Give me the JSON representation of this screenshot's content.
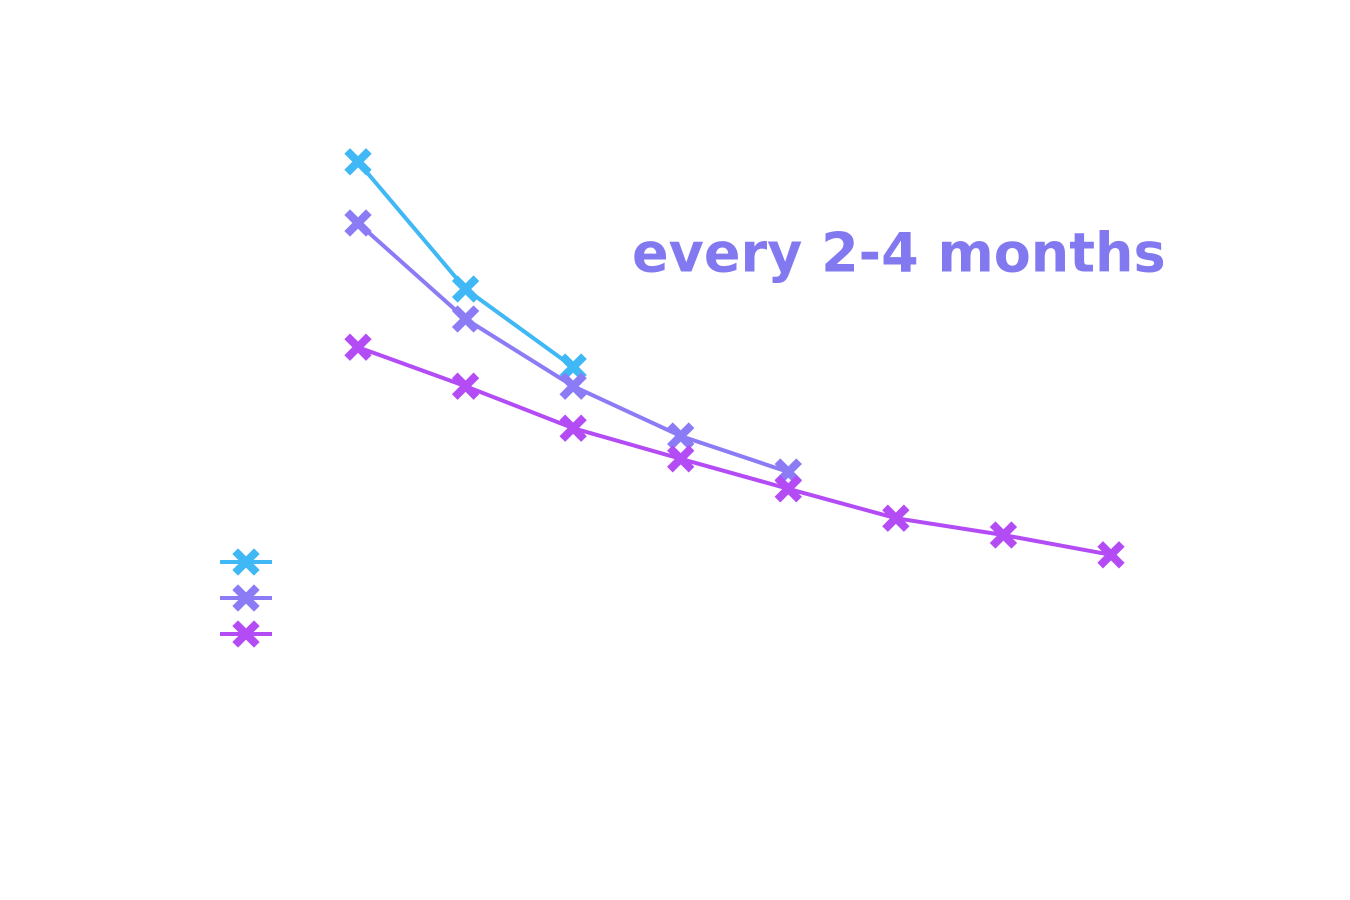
{
  "chart_data": {
    "type": "line",
    "annotation": "every 2-4 months",
    "annotation_color": "#8279f0",
    "categories": [
      null,
      null,
      null,
      null,
      null,
      null,
      null,
      null
    ],
    "ylim": [
      0,
      100
    ],
    "legend": "left",
    "series": [
      {
        "color": "#3fb8f5",
        "values": [
          89.7,
          68.5,
          55.5,
          null,
          null,
          null,
          null,
          null
        ]
      },
      {
        "color": "#8b7cf6",
        "values": [
          79.5,
          63.5,
          52.3,
          44.0,
          38.0,
          null,
          null,
          null
        ]
      },
      {
        "color": "#b44cf5",
        "values": [
          58.8,
          52.3,
          45.3,
          40.2,
          35.2,
          30.3,
          27.5,
          24.2
        ]
      }
    ]
  }
}
